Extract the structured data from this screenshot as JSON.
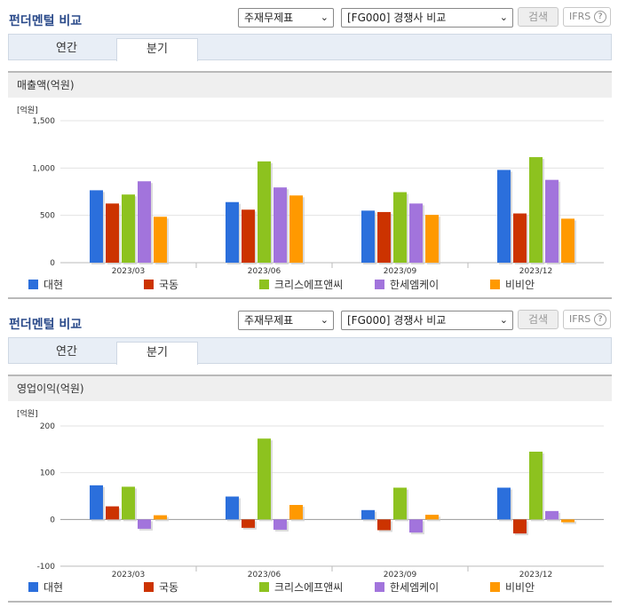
{
  "panels": [
    {
      "title": "펀더멘털 비교",
      "select1": "주재무제표",
      "select2": "[FG000] 경쟁사 비교",
      "search_label": "검색",
      "ifrs_label": "IFRS",
      "help_label": "?",
      "tabs": [
        {
          "label": "연간"
        },
        {
          "label": "분기"
        }
      ],
      "section_title": "매출액(억원)",
      "unit": "[억원]"
    },
    {
      "title": "펀더멘털 비교",
      "select1": "주재무제표",
      "select2": "[FG000] 경쟁사 비교",
      "search_label": "검색",
      "ifrs_label": "IFRS",
      "help_label": "?",
      "tabs": [
        {
          "label": "연간"
        },
        {
          "label": "분기"
        }
      ],
      "section_title": "영업이익(억원)",
      "unit": "[억원]"
    }
  ],
  "colors": [
    "#2b6fdc",
    "#cc3300",
    "#8dc21f",
    "#a274dc",
    "#ff9900"
  ],
  "chart_data": [
    {
      "type": "bar",
      "categories": [
        "2023/03",
        "2023/06",
        "2023/09",
        "2023/12"
      ],
      "ylim": [
        0,
        1500
      ],
      "yticks": [
        "0",
        "500",
        "1,000",
        "1,500"
      ],
      "ytick_values": [
        0,
        500,
        1000,
        1500
      ],
      "series": [
        {
          "name": "대현",
          "values": [
            765,
            640,
            550,
            980
          ]
        },
        {
          "name": "국동",
          "values": [
            625,
            560,
            535,
            520
          ]
        },
        {
          "name": "크리스에프앤씨",
          "values": [
            720,
            1070,
            745,
            1115
          ]
        },
        {
          "name": "한세엠케이",
          "values": [
            860,
            795,
            625,
            875
          ]
        },
        {
          "name": "비비안",
          "values": [
            485,
            710,
            505,
            465
          ]
        }
      ]
    },
    {
      "type": "bar",
      "categories": [
        "2023/03",
        "2023/06",
        "2023/09",
        "2023/12"
      ],
      "ylim": [
        -100,
        200
      ],
      "yticks": [
        "-100",
        "0",
        "100",
        "200"
      ],
      "ytick_values": [
        -100,
        0,
        100,
        200
      ],
      "series": [
        {
          "name": "대현",
          "values": [
            73,
            49,
            20,
            68
          ]
        },
        {
          "name": "국동",
          "values": [
            28,
            -18,
            -23,
            -30
          ]
        },
        {
          "name": "크리스에프앤씨",
          "values": [
            70,
            173,
            68,
            145
          ]
        },
        {
          "name": "한세엠케이",
          "values": [
            -20,
            -22,
            -28,
            18
          ]
        },
        {
          "name": "비비안",
          "values": [
            9,
            31,
            10,
            -6
          ]
        }
      ]
    }
  ]
}
